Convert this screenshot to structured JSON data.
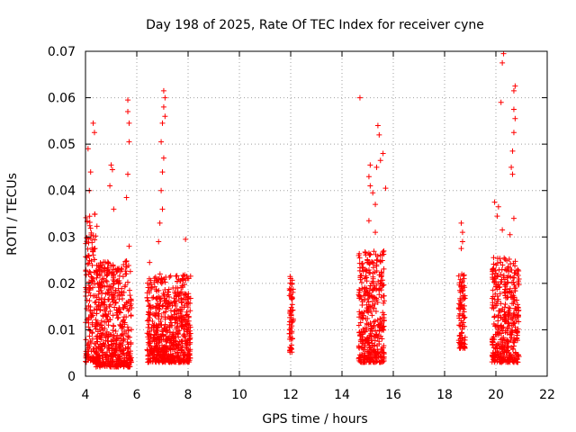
{
  "chart_data": {
    "type": "scatter",
    "title": "Day 198 of 2025, Rate Of TEC Index for receiver cyne",
    "xlabel": "GPS time / hours",
    "ylabel": "ROTI / TECUs",
    "xlim": [
      4,
      22
    ],
    "ylim": [
      0,
      0.07
    ],
    "x_ticks": [
      "4",
      "6",
      "8",
      "10",
      "12",
      "14",
      "16",
      "18",
      "20",
      "22"
    ],
    "y_ticks": [
      "0",
      "0.01",
      "0.02",
      "0.03",
      "0.04",
      "0.05",
      "0.06",
      "0.07"
    ],
    "grid": true,
    "marker": "plus",
    "marker_color": "#ff0000",
    "clusters": [
      {
        "x_range": [
          4.0,
          4.45
        ],
        "y_range": [
          0.003,
          0.035
        ],
        "peaks": [
          [
            4.3,
            0.0545
          ],
          [
            4.35,
            0.0525
          ],
          [
            4.1,
            0.049
          ],
          [
            4.2,
            0.044
          ],
          [
            4.15,
            0.04
          ]
        ]
      },
      {
        "x_range": [
          4.4,
          5.8
        ],
        "y_range": [
          0.002,
          0.025
        ],
        "peaks": [
          [
            5.65,
            0.0595
          ],
          [
            5.65,
            0.057
          ],
          [
            5.7,
            0.0545
          ],
          [
            5.7,
            0.0505
          ],
          [
            5.0,
            0.0455
          ],
          [
            5.05,
            0.0445
          ],
          [
            5.65,
            0.0435
          ],
          [
            5.6,
            0.0385
          ],
          [
            5.1,
            0.036
          ],
          [
            4.95,
            0.041
          ],
          [
            5.7,
            0.028
          ]
        ]
      },
      {
        "x_range": [
          6.4,
          8.1
        ],
        "y_range": [
          0.003,
          0.022
        ],
        "peaks": [
          [
            7.05,
            0.0615
          ],
          [
            7.1,
            0.06
          ],
          [
            7.05,
            0.058
          ],
          [
            7.1,
            0.056
          ],
          [
            7.0,
            0.0545
          ],
          [
            6.95,
            0.0505
          ],
          [
            7.05,
            0.047
          ],
          [
            7.0,
            0.044
          ],
          [
            6.95,
            0.04
          ],
          [
            7.0,
            0.036
          ],
          [
            6.9,
            0.033
          ],
          [
            6.85,
            0.029
          ],
          [
            7.9,
            0.0295
          ],
          [
            6.5,
            0.0245
          ]
        ]
      },
      {
        "x_range": [
          11.95,
          12.1
        ],
        "y_range": [
          0.005,
          0.0215
        ],
        "peaks": []
      },
      {
        "x_range": [
          14.65,
          15.65
        ],
        "y_range": [
          0.003,
          0.027
        ],
        "peaks": [
          [
            14.7,
            0.06
          ],
          [
            15.4,
            0.054
          ],
          [
            15.45,
            0.052
          ],
          [
            15.6,
            0.048
          ],
          [
            15.5,
            0.0465
          ],
          [
            15.35,
            0.045
          ],
          [
            15.1,
            0.0455
          ],
          [
            15.05,
            0.043
          ],
          [
            15.1,
            0.041
          ],
          [
            15.2,
            0.0395
          ],
          [
            15.3,
            0.037
          ],
          [
            15.7,
            0.0405
          ],
          [
            15.05,
            0.0335
          ],
          [
            15.3,
            0.031
          ]
        ]
      },
      {
        "x_range": [
          18.55,
          18.8
        ],
        "y_range": [
          0.006,
          0.022
        ],
        "peaks": [
          [
            18.65,
            0.033
          ],
          [
            18.7,
            0.031
          ],
          [
            18.7,
            0.029
          ],
          [
            18.65,
            0.0275
          ]
        ]
      },
      {
        "x_range": [
          19.85,
          20.9
        ],
        "y_range": [
          0.003,
          0.026
        ],
        "peaks": [
          [
            20.3,
            0.0695
          ],
          [
            20.25,
            0.0675
          ],
          [
            20.75,
            0.0625
          ],
          [
            20.7,
            0.0615
          ],
          [
            20.2,
            0.059
          ],
          [
            20.7,
            0.0575
          ],
          [
            20.75,
            0.0555
          ],
          [
            20.7,
            0.0525
          ],
          [
            20.65,
            0.0485
          ],
          [
            20.6,
            0.045
          ],
          [
            20.65,
            0.0435
          ],
          [
            19.95,
            0.0375
          ],
          [
            20.1,
            0.0365
          ],
          [
            20.05,
            0.0345
          ],
          [
            20.7,
            0.034
          ],
          [
            20.25,
            0.0315
          ],
          [
            20.55,
            0.0305
          ]
        ]
      }
    ]
  }
}
